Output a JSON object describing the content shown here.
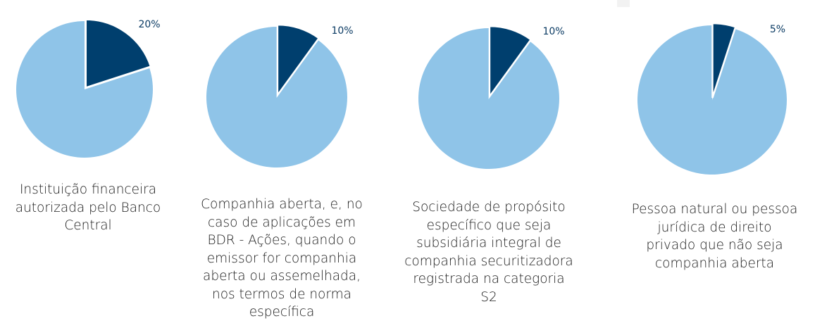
{
  "chart_data": [
    {
      "type": "pie",
      "slices": [
        {
          "value": 20,
          "label": "20%",
          "color": "#003f6e"
        },
        {
          "value": 80,
          "color": "#8fc4e8"
        }
      ],
      "caption": "Instituição financeira\nautorizada pelo Banco\nCentral"
    },
    {
      "type": "pie",
      "slices": [
        {
          "value": 10,
          "label": "10%",
          "color": "#003f6e"
        },
        {
          "value": 90,
          "color": "#8fc4e8"
        }
      ],
      "caption": "Companhia aberta, e, no\ncaso de aplicações em\nBDR - Ações, quando o\nemissor for companhia\naberta ou assemelhada,\nnos termos de norma\nespecífica"
    },
    {
      "type": "pie",
      "slices": [
        {
          "value": 10,
          "label": "10%",
          "color": "#003f6e"
        },
        {
          "value": 90,
          "color": "#8fc4e8"
        }
      ],
      "caption": "Sociedade de propósito\nespecífico que seja\nsubsidiária integral de\ncompanhia securitizadora\nregistrada na categoria\nS2"
    },
    {
      "type": "pie",
      "slices": [
        {
          "value": 5,
          "label": "5%",
          "color": "#003f6e"
        },
        {
          "value": 95,
          "color": "#8fc4e8"
        }
      ],
      "caption": "Pessoa natural ou pessoa\njurídica de direito\nprivado que não seja\ncompanhia aberta"
    }
  ]
}
